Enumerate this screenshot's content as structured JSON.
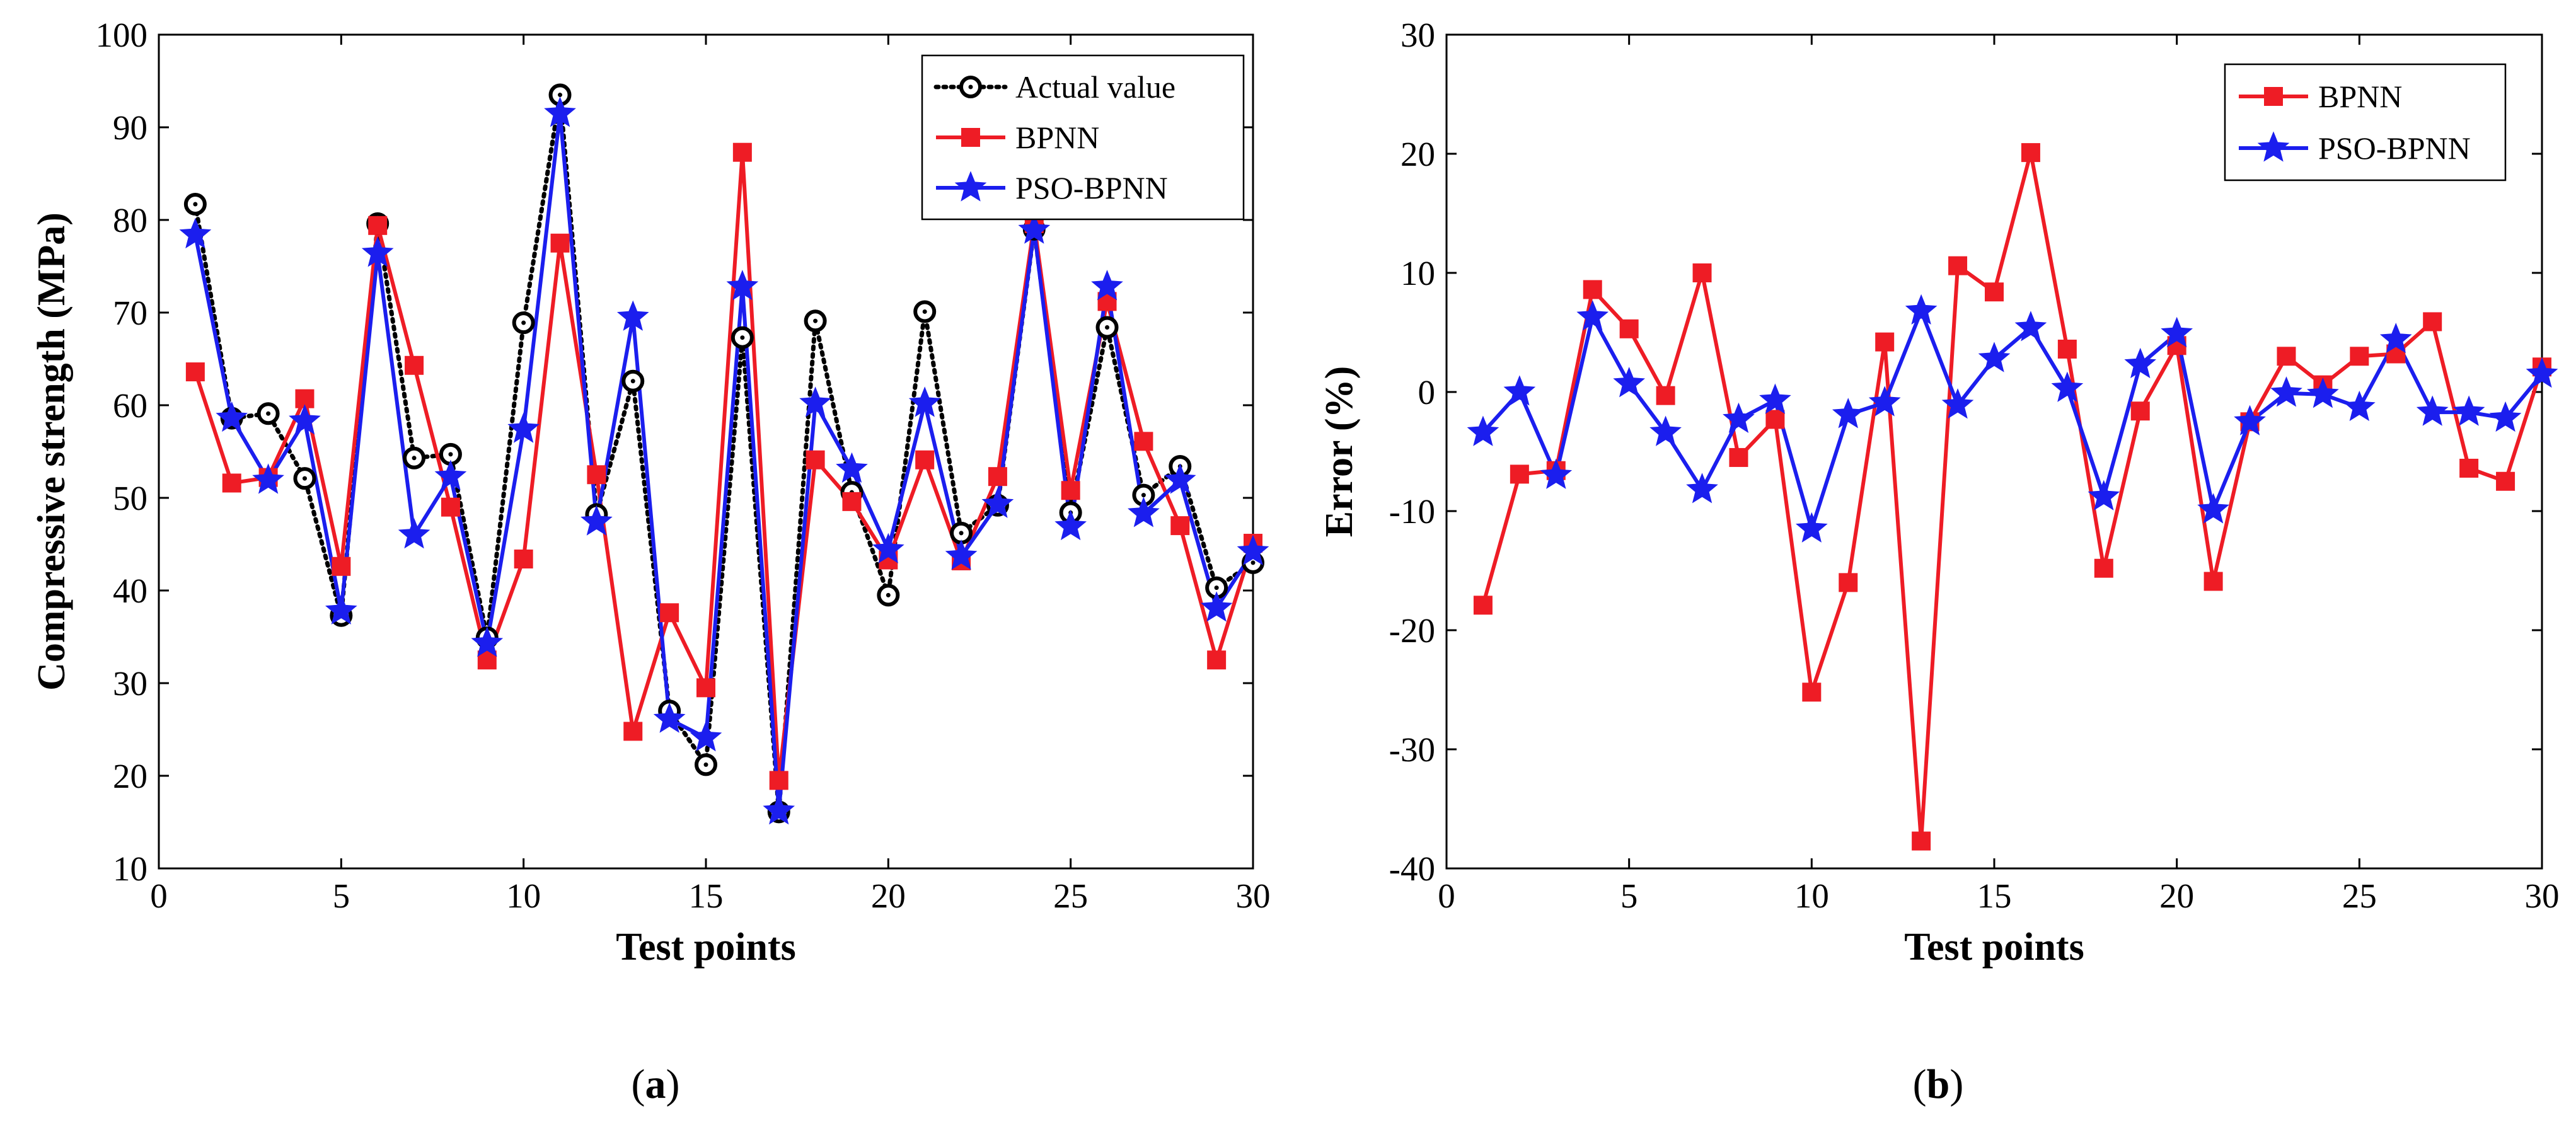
{
  "chart_data": [
    {
      "type": "line",
      "panel": "a",
      "caption_label": "a",
      "xlabel": "Test points",
      "ylabel": "Compressive strength (MPa)",
      "xlim": [
        0,
        30
      ],
      "ylim": [
        10,
        100
      ],
      "xticks": [
        0,
        5,
        10,
        15,
        20,
        25,
        30
      ],
      "yticks": [
        10,
        20,
        30,
        40,
        50,
        60,
        70,
        80,
        90,
        100
      ],
      "legend_position": "top-right",
      "x": [
        1,
        2,
        3,
        4,
        5,
        6,
        7,
        8,
        9,
        10,
        11,
        12,
        13,
        14,
        15,
        16,
        17,
        18,
        19,
        20,
        21,
        22,
        23,
        24,
        25,
        26,
        27,
        28,
        29,
        30
      ],
      "series": [
        {
          "name": "Actual value",
          "color": "#000000",
          "marker": "circle",
          "line": "dotted",
          "values": [
            81.7,
            58.6,
            59.1,
            52.1,
            37.3,
            79.6,
            54.3,
            54.7,
            34.9,
            68.9,
            93.5,
            48.2,
            62.6,
            27.0,
            21.2,
            67.3,
            16.1,
            69.1,
            50.6,
            39.5,
            70.1,
            46.2,
            49.2,
            79.0,
            48.4,
            68.4,
            50.3,
            53.4,
            40.3,
            43.0
          ]
        },
        {
          "name": "BPNN",
          "color": "#ee1c25",
          "marker": "square",
          "line": "solid",
          "values": [
            63.6,
            51.6,
            52.2,
            60.7,
            42.6,
            79.4,
            64.3,
            49.0,
            32.5,
            43.4,
            77.5,
            52.5,
            24.8,
            37.6,
            29.5,
            87.3,
            19.5,
            54.1,
            49.6,
            43.3,
            54.1,
            43.2,
            52.3,
            79.6,
            50.8,
            71.2,
            56.1,
            47.0,
            32.5,
            45.1
          ]
        },
        {
          "name": "PSO-BPNN",
          "color": "#1b1eee",
          "marker": "star",
          "line": "solid",
          "values": [
            78.4,
            58.6,
            51.9,
            58.3,
            37.8,
            76.4,
            46.0,
            52.3,
            34.3,
            57.4,
            91.5,
            47.4,
            69.5,
            26.1,
            24.1,
            72.8,
            16.2,
            60.2,
            53.1,
            44.4,
            60.2,
            43.7,
            49.3,
            78.9,
            46.9,
            72.8,
            48.3,
            51.9,
            38.1,
            44.2
          ]
        }
      ]
    },
    {
      "type": "line",
      "panel": "b",
      "caption_label": "b",
      "xlabel": "Test points",
      "ylabel": "Error (%)",
      "xlim": [
        0,
        30
      ],
      "ylim": [
        -40,
        30
      ],
      "xticks": [
        0,
        5,
        10,
        15,
        20,
        25,
        30
      ],
      "yticks": [
        -40,
        -30,
        -20,
        -10,
        0,
        10,
        20,
        30
      ],
      "legend_position": "top-right",
      "x": [
        1,
        2,
        3,
        4,
        5,
        6,
        7,
        8,
        9,
        10,
        11,
        12,
        13,
        14,
        15,
        16,
        17,
        18,
        19,
        20,
        21,
        22,
        23,
        24,
        25,
        26,
        27,
        28,
        29,
        30
      ],
      "series": [
        {
          "name": "BPNN",
          "color": "#ee1c25",
          "marker": "square",
          "line": "solid",
          "values": [
            -17.9,
            -6.9,
            -6.6,
            8.6,
            5.3,
            -0.3,
            10.0,
            -5.5,
            -2.3,
            -25.2,
            -16.0,
            4.2,
            -37.7,
            10.6,
            8.4,
            20.1,
            3.6,
            -14.8,
            -1.6,
            3.9,
            -15.9,
            -2.5,
            3.0,
            0.6,
            3.0,
            3.2,
            5.9,
            -6.4,
            -7.5,
            2.1
          ]
        },
        {
          "name": "PSO-BPNN",
          "color": "#1b1eee",
          "marker": "star",
          "line": "solid",
          "values": [
            -3.4,
            0.0,
            -7.0,
            6.3,
            0.7,
            -3.4,
            -8.2,
            -2.3,
            -0.7,
            -11.5,
            -1.9,
            -0.9,
            6.8,
            -1.1,
            2.8,
            5.4,
            0.3,
            -8.8,
            2.3,
            4.9,
            -9.9,
            -2.5,
            -0.1,
            -0.2,
            -1.3,
            4.4,
            -1.7,
            -1.7,
            -2.2,
            1.5
          ]
        }
      ]
    }
  ]
}
